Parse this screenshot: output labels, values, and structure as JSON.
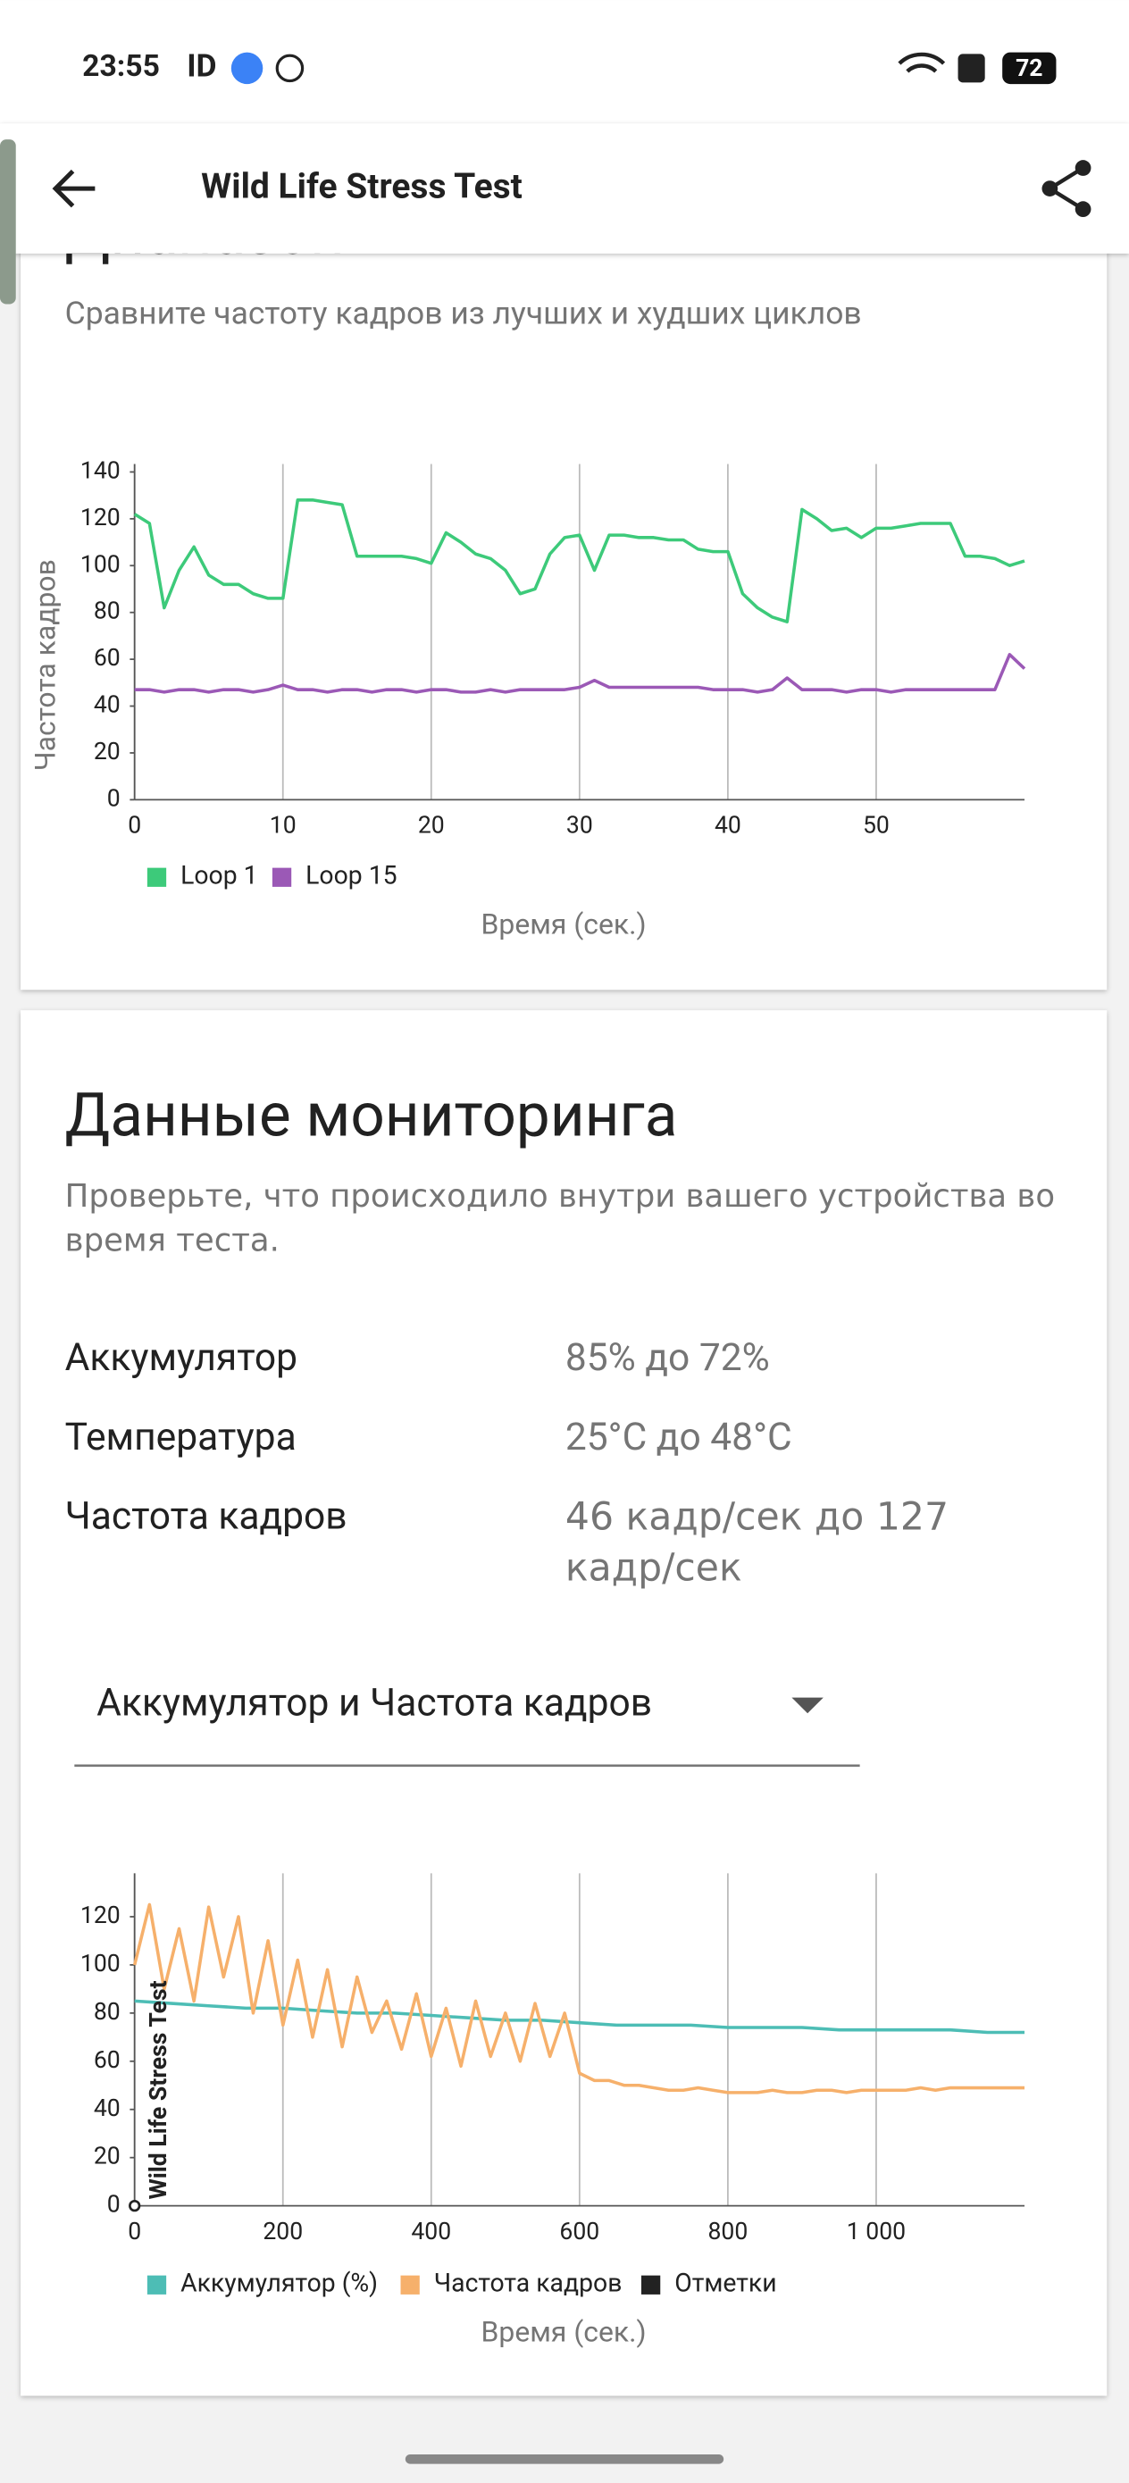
{
  "status_bar": {
    "time": "23:55",
    "battery": "72"
  },
  "app_bar": {
    "title": "Wild Life Stress Test"
  },
  "range_card": {
    "title": "Диапазон",
    "description": "Сравните частоту кадров из лучших и худших циклов"
  },
  "monitoring_card": {
    "title": "Данные мониторинга",
    "description": "Проверьте, что происходило внутри вашего устройства во время теста.",
    "rows": [
      {
        "label": "Аккумулятор",
        "value": "85% до 72%"
      },
      {
        "label": "Температура",
        "value": "25°C до 48°C"
      },
      {
        "label": "Частота кадров",
        "value": "46 кадр/сек до 127 кадр/сек"
      }
    ],
    "dropdown": "Аккумулятор и Частота кадров"
  },
  "chart_data": [
    {
      "type": "line",
      "y_label": "Частота кадров",
      "x_label": "Время (сек.)",
      "xlim": [
        0,
        60
      ],
      "ylim": [
        0,
        140
      ],
      "xticks": [
        0,
        10,
        20,
        30,
        40,
        50
      ],
      "yticks": [
        0,
        20,
        40,
        60,
        80,
        100,
        120,
        140
      ],
      "grid": "x",
      "series": [
        {
          "name": "Loop 1",
          "color": "#3dca7a",
          "x": [
            0,
            1,
            2,
            3,
            4,
            5,
            6,
            7,
            8,
            9,
            10,
            11,
            12,
            13,
            14,
            15,
            16,
            17,
            18,
            19,
            20,
            21,
            22,
            23,
            24,
            25,
            26,
            27,
            28,
            29,
            30,
            31,
            32,
            33,
            34,
            35,
            36,
            37,
            38,
            39,
            40,
            41,
            42,
            43,
            44,
            45,
            46,
            47,
            48,
            49,
            50,
            51,
            52,
            53,
            54,
            55,
            56,
            57,
            58,
            59,
            60
          ],
          "values": [
            122,
            118,
            82,
            98,
            108,
            96,
            92,
            92,
            88,
            86,
            86,
            128,
            128,
            127,
            126,
            104,
            104,
            104,
            104,
            103,
            101,
            114,
            110,
            105,
            103,
            98,
            88,
            90,
            105,
            112,
            113,
            98,
            113,
            113,
            112,
            112,
            111,
            111,
            107,
            106,
            106,
            88,
            82,
            78,
            76,
            124,
            120,
            115,
            116,
            112,
            116,
            116,
            117,
            118,
            118,
            118,
            104,
            104,
            103,
            100,
            102
          ]
        },
        {
          "name": "Loop 15",
          "color": "#9b59b6",
          "x": [
            0,
            1,
            2,
            3,
            4,
            5,
            6,
            7,
            8,
            9,
            10,
            11,
            12,
            13,
            14,
            15,
            16,
            17,
            18,
            19,
            20,
            21,
            22,
            23,
            24,
            25,
            26,
            27,
            28,
            29,
            30,
            31,
            32,
            33,
            34,
            35,
            36,
            37,
            38,
            39,
            40,
            41,
            42,
            43,
            44,
            45,
            46,
            47,
            48,
            49,
            50,
            51,
            52,
            53,
            54,
            55,
            56,
            57,
            58,
            59,
            60
          ],
          "values": [
            47,
            47,
            46,
            47,
            47,
            46,
            47,
            47,
            46,
            47,
            49,
            47,
            47,
            46,
            47,
            47,
            46,
            47,
            47,
            46,
            47,
            47,
            46,
            46,
            47,
            46,
            47,
            47,
            47,
            47,
            48,
            51,
            48,
            48,
            48,
            48,
            48,
            48,
            48,
            47,
            47,
            47,
            46,
            47,
            52,
            47,
            47,
            47,
            46,
            47,
            47,
            46,
            47,
            47,
            47,
            47,
            47,
            47,
            47,
            62,
            56
          ]
        }
      ]
    },
    {
      "type": "line",
      "x_label": "Время (сек.)",
      "xlim": [
        0,
        1200
      ],
      "ylim": [
        0,
        140
      ],
      "xticks": [
        0,
        200,
        400,
        600,
        800,
        {
          "value": 1000,
          "label": "1 000"
        }
      ],
      "yticks": [
        0,
        20,
        40,
        60,
        80,
        100,
        120
      ],
      "grid": "x",
      "annotations": [
        {
          "x": 0,
          "label": "Wild Life Stress Test"
        }
      ],
      "series": [
        {
          "name": "Аккумулятор (%)",
          "color": "#4dbdb5",
          "x": [
            0,
            50,
            100,
            150,
            200,
            250,
            300,
            350,
            400,
            450,
            500,
            550,
            600,
            650,
            700,
            750,
            800,
            850,
            900,
            950,
            1000,
            1050,
            1100,
            1150,
            1200
          ],
          "values": [
            85,
            84,
            83,
            82,
            82,
            81,
            80,
            80,
            79,
            78,
            77,
            77,
            76,
            75,
            75,
            75,
            74,
            74,
            74,
            73,
            73,
            73,
            73,
            72,
            72
          ]
        },
        {
          "name": "Частота кадров",
          "color": "#f6b06b",
          "x": [
            0,
            20,
            40,
            60,
            80,
            100,
            120,
            140,
            160,
            180,
            200,
            220,
            240,
            260,
            280,
            300,
            320,
            340,
            360,
            380,
            400,
            420,
            440,
            460,
            480,
            500,
            520,
            540,
            560,
            580,
            600,
            620,
            640,
            660,
            680,
            700,
            720,
            740,
            760,
            780,
            800,
            820,
            840,
            860,
            880,
            900,
            920,
            940,
            960,
            980,
            1000,
            1020,
            1040,
            1060,
            1080,
            1100,
            1120,
            1140,
            1160,
            1180,
            1200
          ],
          "values": [
            100,
            125,
            90,
            115,
            85,
            124,
            95,
            120,
            80,
            110,
            75,
            102,
            70,
            98,
            66,
            95,
            72,
            85,
            65,
            88,
            62,
            82,
            58,
            85,
            62,
            80,
            60,
            84,
            62,
            80,
            55,
            52,
            52,
            50,
            50,
            49,
            48,
            48,
            49,
            48,
            47,
            47,
            47,
            48,
            47,
            47,
            48,
            48,
            47,
            48,
            48,
            48,
            48,
            49,
            48,
            49,
            49,
            49,
            49,
            49,
            49
          ]
        },
        {
          "name": "Отметки",
          "color": "#222222",
          "x": [
            0
          ],
          "values": [
            0
          ]
        }
      ]
    }
  ]
}
